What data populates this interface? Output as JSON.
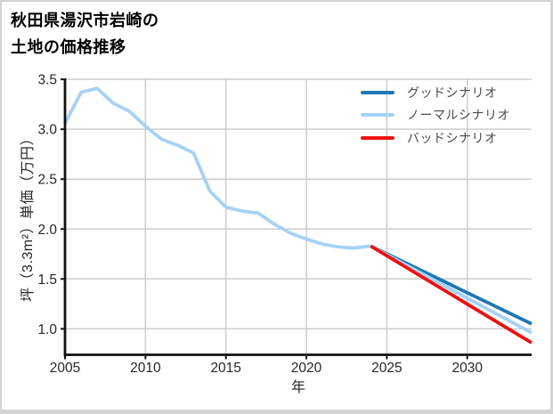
{
  "title": {
    "line1": "秋田県湯沢市岩崎の",
    "line2": "土地の価格推移"
  },
  "colors": {
    "good_scenario": "#1f77b4",
    "normal_scenario": "#a5d2f5",
    "bad_scenario": "#ee1111",
    "grid": "#cdcdcd",
    "axis": "#111111",
    "tick_label": "#262626",
    "legend_text": "#4a4a4a",
    "frame_border": "#d3d3d3",
    "background": "#ffffff"
  },
  "chart_data": {
    "type": "line",
    "title": "秋田県湯沢市岩崎の土地の価格推移",
    "xlabel": "年",
    "ylabel": "坪（3.3m²）単価（万円）",
    "xlim": [
      2005,
      2034
    ],
    "ylim": [
      0.74,
      3.51
    ],
    "xticks": [
      2005,
      2010,
      2015,
      2020,
      2025,
      2030
    ],
    "yticks": [
      1.0,
      1.5,
      2.0,
      2.5,
      3.0,
      3.5
    ],
    "grid": true,
    "legend_position": "upper right",
    "series": [
      {
        "id": "actual-history",
        "label": "",
        "color_key": "normal_scenario",
        "x": [
          2005,
          2006,
          2007,
          2008,
          2009,
          2010,
          2011,
          2012,
          2013,
          2014,
          2015,
          2016,
          2017,
          2018,
          2019,
          2020,
          2021,
          2022,
          2023,
          2024
        ],
        "y": [
          3.06,
          3.37,
          3.41,
          3.26,
          3.18,
          3.03,
          2.9,
          2.84,
          2.76,
          2.38,
          2.22,
          2.18,
          2.16,
          2.05,
          1.96,
          1.9,
          1.85,
          1.82,
          1.81,
          1.83
        ]
      },
      {
        "id": "good-scenario",
        "label": "グッドシナリオ",
        "color_key": "good_scenario",
        "x": [
          2024,
          2034
        ],
        "y": [
          1.83,
          1.05
        ]
      },
      {
        "id": "normal-scenario",
        "label": "ノーマルシナリオ",
        "color_key": "normal_scenario",
        "x": [
          2024,
          2034
        ],
        "y": [
          1.83,
          0.96
        ]
      },
      {
        "id": "bad-scenario",
        "label": "バッドシナリオ",
        "color_key": "bad_scenario",
        "x": [
          2024,
          2034
        ],
        "y": [
          1.83,
          0.86
        ]
      }
    ]
  }
}
